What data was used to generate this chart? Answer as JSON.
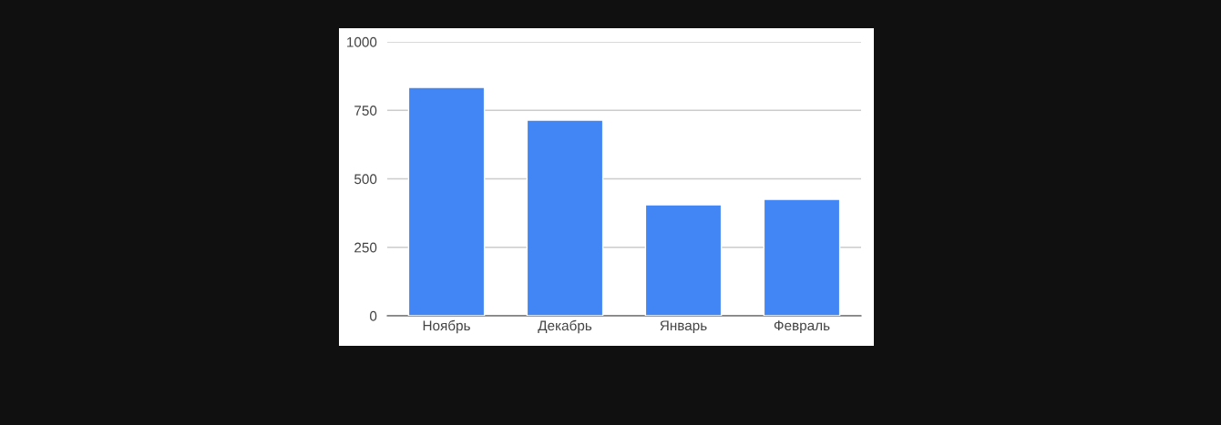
{
  "chart_data": {
    "type": "bar",
    "categories": [
      "Ноябрь",
      "Декабрь",
      "Январь",
      "Февраль"
    ],
    "values": [
      834,
      714,
      405,
      425
    ],
    "color": "#4285f4",
    "ylim": [
      0,
      1000
    ],
    "yticks": [
      0,
      250,
      500,
      750,
      1000
    ],
    "grid": "y"
  }
}
